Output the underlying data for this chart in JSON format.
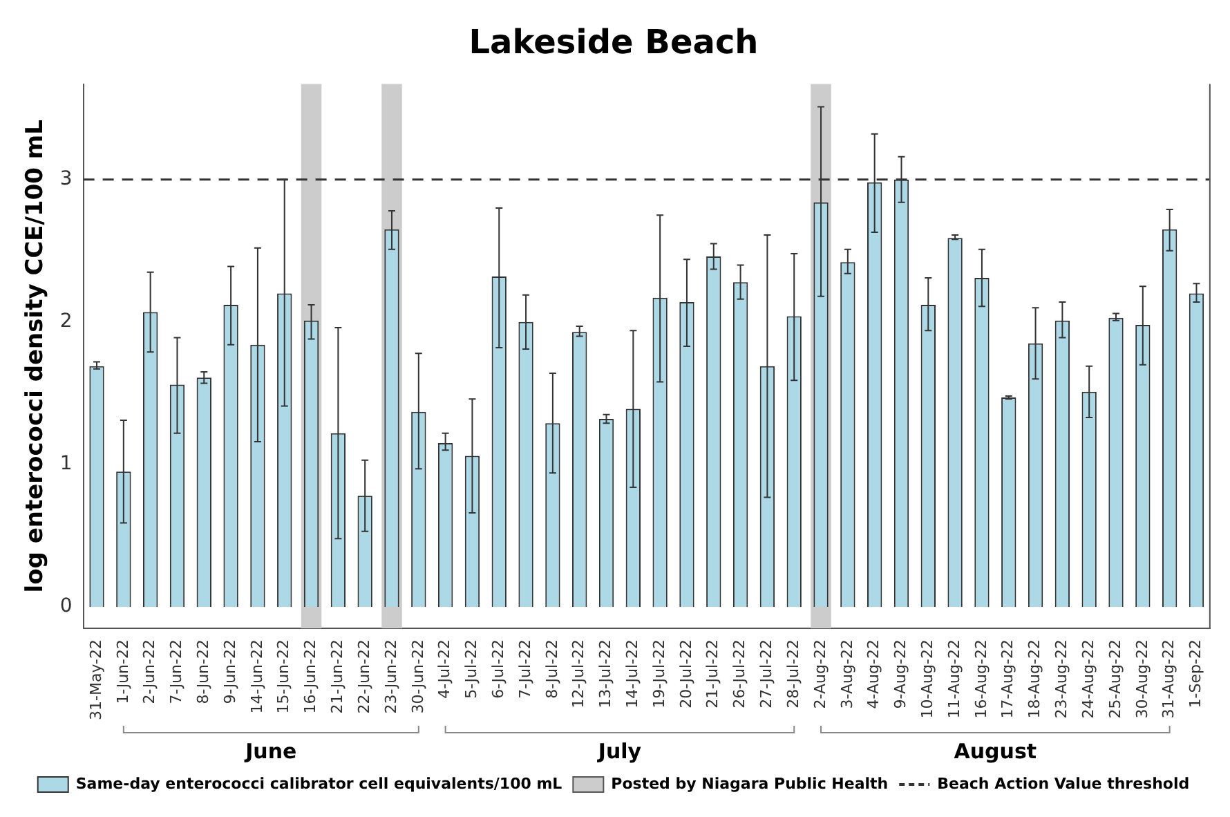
{
  "chart_data": {
    "type": "bar",
    "title": "Lakeside Beach",
    "ylabel": "log enterococci density CCE/100 mL",
    "categories": [
      "31-May-22",
      "1-Jun-22",
      "2-Jun-22",
      "7-Jun-22",
      "8-Jun-22",
      "9-Jun-22",
      "14-Jun-22",
      "15-Jun-22",
      "16-Jun-22",
      "21-Jun-22",
      "22-Jun-22",
      "23-Jun-22",
      "30-Jun-22",
      "4-Jul-22",
      "5-Jul-22",
      "6-Jul-22",
      "7-Jul-22",
      "8-Jul-22",
      "12-Jul-22",
      "13-Jul-22",
      "14-Jul-22",
      "19-Jul-22",
      "20-Jul-22",
      "21-Jul-22",
      "26-Jul-22",
      "27-Jul-22",
      "28-Jul-22",
      "2-Aug-22",
      "3-Aug-22",
      "4-Aug-22",
      "9-Aug-22",
      "10-Aug-22",
      "11-Aug-22",
      "16-Aug-22",
      "17-Aug-22",
      "18-Aug-22",
      "23-Aug-22",
      "24-Aug-22",
      "25-Aug-22",
      "30-Aug-22",
      "31-Aug-22",
      "1-Sep-22"
    ],
    "series": [
      {
        "name": "Same-day enterococci calibrator cell equivalents/100 mL",
        "color": "#add8e6",
        "values": [
          1.69,
          0.95,
          2.07,
          1.56,
          1.61,
          2.12,
          1.84,
          2.2,
          2.01,
          1.22,
          0.78,
          2.65,
          1.37,
          1.15,
          1.06,
          2.32,
          2.0,
          1.29,
          1.93,
          1.32,
          1.39,
          2.17,
          2.14,
          2.46,
          2.28,
          1.69,
          2.04,
          2.84,
          2.42,
          2.98,
          3.0,
          2.12,
          2.59,
          2.31,
          1.47,
          1.85,
          2.01,
          1.51,
          2.03,
          1.98,
          2.65,
          2.2
        ],
        "errors": [
          [
            1.67,
            1.72
          ],
          [
            0.59,
            1.31
          ],
          [
            1.79,
            2.35
          ],
          [
            1.22,
            1.89
          ],
          [
            1.57,
            1.65
          ],
          [
            1.84,
            2.39
          ],
          [
            1.16,
            2.52
          ],
          [
            1.41,
            3.0
          ],
          [
            1.88,
            2.12
          ],
          [
            0.48,
            1.96
          ],
          [
            0.53,
            1.03
          ],
          [
            2.51,
            2.78
          ],
          [
            0.97,
            1.78
          ],
          [
            1.1,
            1.22
          ],
          [
            0.66,
            1.46
          ],
          [
            1.82,
            2.8
          ],
          [
            1.81,
            2.19
          ],
          [
            0.94,
            1.64
          ],
          [
            1.9,
            1.97
          ],
          [
            1.29,
            1.35
          ],
          [
            0.84,
            1.94
          ],
          [
            1.58,
            2.75
          ],
          [
            1.83,
            2.44
          ],
          [
            2.37,
            2.55
          ],
          [
            2.16,
            2.4
          ],
          [
            0.77,
            2.61
          ],
          [
            1.59,
            2.48
          ],
          [
            2.18,
            3.51
          ],
          [
            2.34,
            2.51
          ],
          [
            2.63,
            3.32
          ],
          [
            2.84,
            3.16
          ],
          [
            1.94,
            2.31
          ],
          [
            2.58,
            2.61
          ],
          [
            2.11,
            2.51
          ],
          [
            1.46,
            1.48
          ],
          [
            1.6,
            2.1
          ],
          [
            1.89,
            2.14
          ],
          [
            1.33,
            1.69
          ],
          [
            2.01,
            2.06
          ],
          [
            1.7,
            2.25
          ],
          [
            2.5,
            2.79
          ],
          [
            2.14,
            2.27
          ]
        ]
      }
    ],
    "ylim": [
      -0.15,
      3.67
    ],
    "yticks": [
      0,
      1,
      2,
      3
    ],
    "grid": false,
    "legend": "bottom",
    "ref_lines": [
      {
        "axis": "y",
        "value": 3,
        "label": "Beach Action Value threshold",
        "color": "#333333",
        "line_style": "dashed"
      }
    ],
    "bands": [
      {
        "axis": "x",
        "from": "16-Jun-22",
        "to": "16-Jun-22",
        "label": "Posted by Niagara Public Health",
        "color": "#cccccc"
      },
      {
        "axis": "x",
        "from": "23-Jun-22",
        "to": "23-Jun-22",
        "color": "#cccccc"
      },
      {
        "axis": "x",
        "from": "2-Aug-22",
        "to": "2-Aug-22",
        "color": "#cccccc"
      }
    ],
    "annotations": [
      "June",
      "July",
      "August"
    ]
  }
}
